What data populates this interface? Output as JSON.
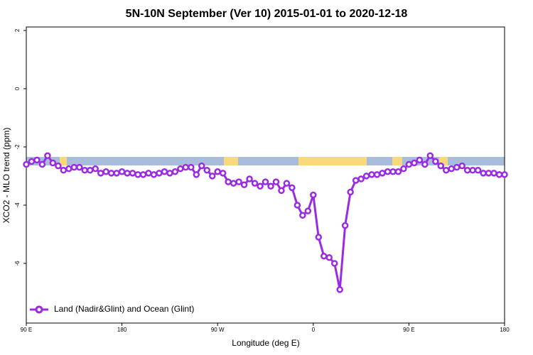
{
  "chart_data": {
    "type": "line",
    "title": "5N-10N September (Ver 10)   2015-01-01 to 2020-12-18",
    "x_label": "Longitude (deg E)",
    "y_label": "XCO2 - MLO trend (ppm)",
    "xlim": [
      90,
      540
    ],
    "xticks": [
      {
        "value": 90,
        "label": "90 E"
      },
      180,
      {
        "value": 270,
        "label": "90 W"
      },
      {
        "value": 360,
        "label": "0"
      },
      {
        "value": 450,
        "label": "90 E"
      },
      {
        "value": 540,
        "label": "180"
      }
    ],
    "ylim": [
      -8.05,
      2.12
    ],
    "yticks": [
      -6,
      -4,
      -2,
      0,
      2
    ],
    "legend_position": "lower left",
    "x": [
      90,
      95,
      100,
      105,
      110,
      115,
      120,
      125,
      130,
      135,
      140,
      145,
      150,
      155,
      160,
      165,
      170,
      175,
      180,
      185,
      190,
      195,
      200,
      205,
      210,
      215,
      220,
      225,
      230,
      235,
      240,
      245,
      250,
      255,
      260,
      265,
      270,
      275,
      280,
      285,
      290,
      295,
      300,
      305,
      310,
      315,
      320,
      325,
      330,
      335,
      340,
      345,
      350,
      355,
      360,
      365,
      370,
      375,
      380,
      385,
      390,
      395,
      400,
      405,
      410,
      415,
      420,
      425,
      430,
      435,
      440,
      445,
      450,
      455,
      460,
      465,
      470,
      475,
      480,
      485,
      490,
      495,
      500,
      505,
      510,
      515,
      520,
      525,
      530,
      535,
      540
    ],
    "series": [
      {
        "name": "Land (Nadir&Glint) and Ocean (Glint)",
        "color": "#9b2be0",
        "values": [
          -2.6,
          -2.5,
          -2.45,
          -2.6,
          -2.3,
          -2.55,
          -2.65,
          -2.8,
          -2.75,
          -2.7,
          -2.7,
          -2.8,
          -2.8,
          -2.75,
          -2.9,
          -2.85,
          -2.9,
          -2.9,
          -2.85,
          -2.9,
          -2.9,
          -2.95,
          -2.95,
          -2.9,
          -2.95,
          -2.9,
          -2.85,
          -2.9,
          -2.85,
          -2.75,
          -2.7,
          -2.7,
          -2.95,
          -2.65,
          -2.8,
          -3.0,
          -2.85,
          -2.9,
          -3.2,
          -3.25,
          -3.2,
          -3.3,
          -3.1,
          -3.25,
          -3.35,
          -3.2,
          -3.35,
          -3.2,
          -3.5,
          -3.25,
          -3.4,
          -4.0,
          -4.35,
          -4.2,
          -3.65,
          -5.1,
          -5.75,
          -5.8,
          -6.0,
          -6.9,
          -4.7,
          -3.55,
          -3.15,
          -3.1,
          -3.0,
          -2.95,
          -2.95,
          -2.9,
          -2.85,
          -2.85,
          -2.85,
          -2.75,
          -2.6,
          -2.55,
          -2.45,
          -2.6,
          -2.3,
          -2.5,
          -2.65,
          -2.8,
          -2.75,
          -2.7,
          -2.65,
          -2.8,
          -2.8,
          -2.8,
          -2.9,
          -2.9,
          -2.9,
          -2.95,
          -2.95
        ]
      }
    ]
  }
}
